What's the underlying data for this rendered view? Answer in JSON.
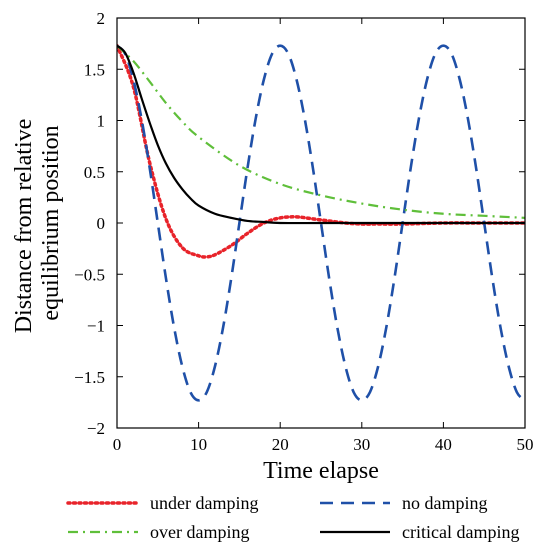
{
  "chart_data": {
    "type": "line",
    "title": "",
    "xlabel": "Time elapse",
    "ylabel": [
      "Distance from relative",
      "equilibrium position"
    ],
    "xlim": [
      0,
      50
    ],
    "ylim": [
      -2,
      2
    ],
    "xticks": [
      0,
      10,
      20,
      30,
      40,
      50
    ],
    "yticks": [
      -2,
      -1.5,
      -1,
      -0.5,
      0,
      0.5,
      1,
      1.5,
      2
    ],
    "ytick_labels": [
      "−2",
      "−1.5",
      "−1",
      "−0.5",
      "0",
      "0.5",
      "1",
      "1.5",
      "2"
    ],
    "grid": false,
    "legend_position": "below plot",
    "series": [
      {
        "name": "under damping",
        "style": "dotted",
        "color": "#e8232a",
        "x": [
          0,
          2,
          4,
          6,
          8,
          10,
          11,
          12,
          14,
          16,
          18,
          20,
          22,
          24,
          26,
          28,
          30,
          32,
          35,
          40,
          45,
          50
        ],
        "y": [
          1.73,
          1.33,
          0.59,
          0.04,
          -0.24,
          -0.32,
          -0.33,
          -0.31,
          -0.22,
          -0.1,
          0.0,
          0.05,
          0.06,
          0.04,
          0.02,
          0.0,
          -0.01,
          -0.01,
          -0.01,
          0.0,
          0.0,
          0.0
        ]
      },
      {
        "name": "no damping",
        "style": "dashed",
        "color": "#1f50a8",
        "x": [
          0,
          1,
          2,
          3,
          4,
          5,
          6,
          7,
          8,
          9,
          10,
          11,
          12,
          13,
          14,
          15,
          16,
          17,
          18,
          19,
          20,
          21,
          22,
          23,
          24,
          25,
          26,
          27,
          28,
          29,
          30,
          31,
          32,
          33,
          34,
          35,
          36,
          37,
          38,
          39,
          40,
          41,
          42,
          43,
          44,
          45,
          46,
          47,
          48,
          49,
          50
        ],
        "y": [
          1.73,
          1.65,
          1.4,
          1.02,
          0.54,
          0.0,
          -0.54,
          -1.02,
          -1.4,
          -1.65,
          -1.73,
          -1.65,
          -1.4,
          -1.02,
          -0.54,
          0.0,
          0.54,
          1.02,
          1.4,
          1.65,
          1.73,
          1.65,
          1.4,
          1.02,
          0.54,
          0.0,
          -0.54,
          -1.02,
          -1.4,
          -1.65,
          -1.73,
          -1.65,
          -1.4,
          -1.02,
          -0.54,
          0.0,
          0.54,
          1.02,
          1.4,
          1.65,
          1.73,
          1.65,
          1.4,
          1.02,
          0.54,
          0.0,
          -0.54,
          -1.02,
          -1.4,
          -1.65,
          -1.73
        ]
      },
      {
        "name": "over damping",
        "style": "dashdot",
        "color": "#5fbf3a",
        "x": [
          0,
          2,
          4,
          6,
          8,
          10,
          15,
          20,
          25,
          30,
          35,
          40,
          45,
          50
        ],
        "y": [
          1.73,
          1.58,
          1.38,
          1.17,
          0.99,
          0.84,
          0.56,
          0.38,
          0.27,
          0.19,
          0.13,
          0.09,
          0.07,
          0.05
        ]
      },
      {
        "name": "critical damping",
        "style": "solid",
        "color": "#000000",
        "x": [
          0,
          1,
          2,
          3,
          4,
          5,
          6,
          7,
          8,
          9,
          10,
          12,
          14,
          16,
          18,
          20,
          25,
          30,
          40,
          50
        ],
        "y": [
          1.73,
          1.66,
          1.47,
          1.22,
          0.98,
          0.76,
          0.58,
          0.44,
          0.33,
          0.24,
          0.17,
          0.09,
          0.05,
          0.02,
          0.01,
          0.0,
          0.0,
          0.0,
          0.0,
          0.0
        ]
      }
    ]
  }
}
